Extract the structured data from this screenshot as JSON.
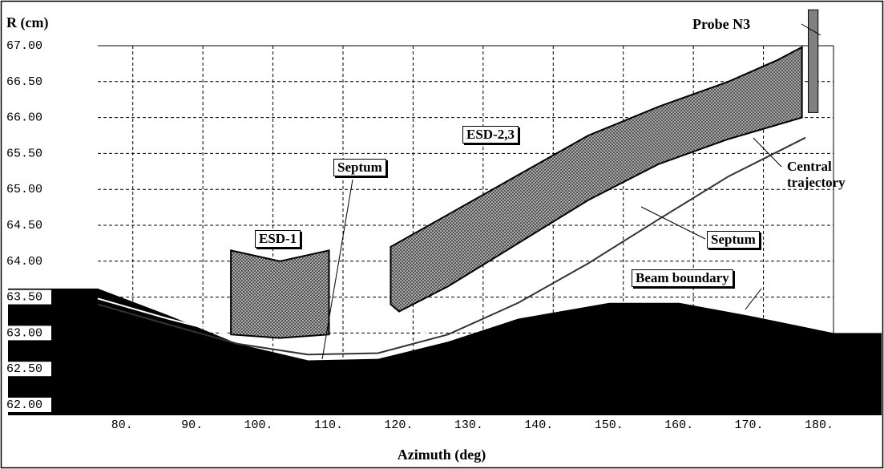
{
  "chart_data": {
    "type": "line",
    "y_label": "R (cm)",
    "x_label": "Azimuth (deg)",
    "xlim": [
      75,
      180
    ],
    "ylim": [
      62,
      67
    ],
    "xticks": [
      {
        "value": 80,
        "label": "80."
      },
      {
        "value": 90,
        "label": "90."
      },
      {
        "value": 100,
        "label": "100."
      },
      {
        "value": 110,
        "label": "110."
      },
      {
        "value": 120,
        "label": "120."
      },
      {
        "value": 130,
        "label": "130."
      },
      {
        "value": 140,
        "label": "140."
      },
      {
        "value": 150,
        "label": "150."
      },
      {
        "value": 160,
        "label": "160."
      },
      {
        "value": 170,
        "label": "170."
      },
      {
        "value": 180,
        "label": "180."
      }
    ],
    "yticks": [
      {
        "value": 62,
        "label": "62.00"
      },
      {
        "value": 62.5,
        "label": "62.50"
      },
      {
        "value": 63,
        "label": "63.00"
      },
      {
        "value": 63.5,
        "label": "63.50"
      },
      {
        "value": 64,
        "label": "64.00"
      },
      {
        "value": 64.5,
        "label": "64.50"
      },
      {
        "value": 65,
        "label": "65.00"
      },
      {
        "value": 65.5,
        "label": "65.50"
      },
      {
        "value": 66,
        "label": "66.00"
      },
      {
        "value": 66.5,
        "label": "66.50"
      },
      {
        "value": 67,
        "label": "67.00"
      }
    ],
    "grid": true,
    "series": [
      {
        "name": "Beam boundary",
        "color": "#000000",
        "fill": "below",
        "x": [
          75,
          85,
          95,
          105,
          115,
          125,
          135,
          148,
          158,
          168,
          180
        ],
        "values": [
          63.62,
          63.25,
          62.85,
          62.62,
          62.64,
          62.88,
          63.2,
          63.42,
          63.42,
          63.24,
          63.0
        ]
      },
      {
        "name": "Central trajectory",
        "color": "#ffffff",
        "x": [
          75,
          85,
          95,
          105,
          115,
          125,
          135,
          145,
          155,
          165,
          176
        ],
        "values": [
          63.48,
          63.2,
          62.95,
          62.78,
          62.82,
          63.1,
          63.55,
          64.1,
          64.7,
          65.3,
          65.82
        ]
      },
      {
        "name": "Septum",
        "color": "#333333",
        "x": [
          75,
          85,
          95,
          105,
          115,
          125,
          135,
          145,
          155,
          165,
          176
        ],
        "values": [
          63.4,
          63.12,
          62.85,
          62.7,
          62.72,
          62.98,
          63.42,
          63.97,
          64.58,
          65.18,
          65.72
        ]
      }
    ],
    "regions": [
      {
        "label": "ESD-1",
        "color": "#999999",
        "x": [
          94,
          101,
          108,
          108,
          101,
          94
        ],
        "y": [
          64.15,
          64.0,
          64.15,
          62.98,
          62.93,
          62.98
        ]
      },
      {
        "label": "ESD-2,3",
        "color": "#999999",
        "x": [
          116.8,
          125,
          135,
          145,
          155,
          165,
          172,
          175.5,
          175.5,
          165,
          155,
          145,
          135,
          125,
          118,
          116.8
        ],
        "y": [
          64.2,
          64.65,
          65.2,
          65.75,
          66.15,
          66.5,
          66.8,
          66.98,
          66.0,
          65.7,
          65.35,
          64.85,
          64.25,
          63.65,
          63.3,
          63.4
        ]
      },
      {
        "label": "Probe N3",
        "color": "#808080",
        "x": [
          176.4,
          177.8,
          177.8,
          176.4
        ],
        "y": [
          67.5,
          67.5,
          66.07,
          66.07
        ]
      }
    ],
    "annotations": [
      "Septum"
    ]
  }
}
